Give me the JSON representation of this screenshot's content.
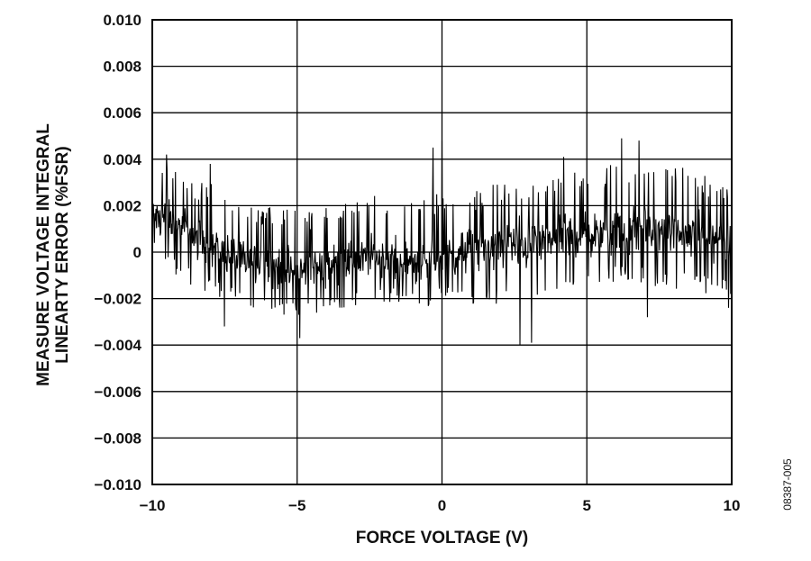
{
  "chart_data": {
    "type": "line",
    "xlabel": "FORCE VOLTAGE (V)",
    "ylabel_lines": [
      "MEASURE VOLTAGE INTEGRAL",
      "LINEARTY ERROR (%FSR)"
    ],
    "xlim": [
      -10,
      10
    ],
    "ylim": [
      -0.01,
      0.01
    ],
    "x_ticks": [
      -10,
      -5,
      0,
      5,
      10
    ],
    "x_tick_labels": [
      "−10",
      "−5",
      "0",
      "5",
      "10"
    ],
    "y_ticks": [
      -0.01,
      -0.008,
      -0.006,
      -0.004,
      -0.002,
      0,
      0.002,
      0.004,
      0.006,
      0.008,
      0.01
    ],
    "y_tick_labels": [
      "−0.010",
      "−0.008",
      "−0.006",
      "−0.004",
      "−0.002",
      "0",
      "0.002",
      "0.004",
      "0.006",
      "0.008",
      "0.010"
    ],
    "grid": true,
    "line_color": "#000000",
    "figure_id": "08387-005",
    "series": [
      {
        "x": [
          -10,
          -9.5,
          -9,
          -8.5,
          -8,
          -7.5,
          -7,
          -6.5,
          -6,
          -5.5,
          -5,
          -4.5,
          -4,
          -3.5,
          -3,
          -2.5,
          -2,
          -1.5,
          -1,
          -0.5,
          0,
          0.5,
          1,
          1.5,
          2,
          2.5,
          3,
          3.5,
          4,
          4.5,
          5,
          5.5,
          6,
          6.5,
          7,
          7.5,
          8,
          8.5,
          9,
          9.5,
          10
        ],
        "mean": [
          0.0018,
          0.0014,
          0.001,
          0.0006,
          0.0003,
          0.0,
          -0.0003,
          -0.0005,
          -0.0006,
          -0.0007,
          -0.0008,
          -0.0007,
          -0.0005,
          -0.0004,
          -0.0003,
          -0.0002,
          -0.0002,
          -0.0003,
          -0.0004,
          -0.0006,
          -0.0002,
          0.0,
          0.0001,
          0.0002,
          0.0003,
          0.0003,
          0.0004,
          0.0005,
          0.0006,
          0.0007,
          0.0008,
          0.0008,
          0.0009,
          0.001,
          0.001,
          0.0009,
          0.0008,
          0.0007,
          0.0006,
          0.0006,
          0.0005
        ],
        "noise_envelope_min": [
          0.0,
          -0.0008,
          -0.0012,
          -0.0016,
          -0.0018,
          -0.002,
          -0.0022,
          -0.0024,
          -0.0026,
          -0.0028,
          -0.003,
          -0.0028,
          -0.0025,
          -0.0024,
          -0.0024,
          -0.0022,
          -0.0022,
          -0.0023,
          -0.0024,
          -0.0025,
          -0.002,
          -0.0022,
          -0.0024,
          -0.0025,
          -0.0026,
          -0.0028,
          -0.0028,
          -0.0026,
          -0.0022,
          -0.0018,
          -0.0016,
          -0.0014,
          -0.0014,
          -0.0015,
          -0.0015,
          -0.0016,
          -0.0016,
          -0.0017,
          -0.0018,
          -0.0019,
          -0.002
        ],
        "noise_envelope_max": [
          0.004,
          0.0038,
          0.0034,
          0.0032,
          0.003,
          0.0026,
          0.0022,
          0.002,
          0.002,
          0.0019,
          0.0018,
          0.0018,
          0.002,
          0.0022,
          0.0023,
          0.0024,
          0.0025,
          0.0025,
          0.0024,
          0.0023,
          0.0028,
          0.0026,
          0.0026,
          0.0028,
          0.003,
          0.0031,
          0.0032,
          0.0033,
          0.0034,
          0.0035,
          0.0036,
          0.0037,
          0.0038,
          0.004,
          0.004,
          0.0039,
          0.0038,
          0.0036,
          0.0034,
          0.0032,
          0.003
        ],
        "spikes": [
          {
            "x": -9.5,
            "y": 0.0042
          },
          {
            "x": -8.0,
            "y": 0.0038
          },
          {
            "x": -7.5,
            "y": -0.0032
          },
          {
            "x": -4.9,
            "y": -0.0037
          },
          {
            "x": -0.3,
            "y": 0.0045
          },
          {
            "x": 0.0,
            "y": 0.0048
          },
          {
            "x": 2.7,
            "y": -0.004
          },
          {
            "x": 3.1,
            "y": -0.0039
          },
          {
            "x": 4.2,
            "y": 0.0041
          },
          {
            "x": 6.2,
            "y": 0.0049
          },
          {
            "x": 6.8,
            "y": 0.0048
          },
          {
            "x": 7.1,
            "y": -0.0028
          },
          {
            "x": 9.9,
            "y": 0.0042
          },
          {
            "x": 9.9,
            "y": -0.0024
          }
        ]
      }
    ]
  }
}
